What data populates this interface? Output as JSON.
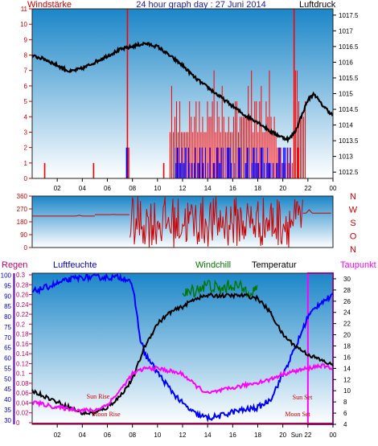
{
  "colors": {
    "background": "#ffffff",
    "panel_top": "#1b86c8",
    "panel_bottom": "#ffffff",
    "wind_bars": "#ff0000",
    "gust_bars": "#0000ff",
    "pressure_line": "#000000",
    "direction_line": "#cc0000",
    "humidity_line": "#0000ff",
    "temperature_line": "#000000",
    "windchill_line": "#007700",
    "dewpoint_line": "#ff00ff",
    "rain_color": "#cc0066",
    "title_color": "#1a1aa8",
    "axis_red": "#cc0000"
  },
  "chart_data": [
    {
      "type": "bar",
      "title": "24 hour graph day : 27 Juni 2014",
      "left_label": "Windstärke",
      "right_label": "Luftdruck",
      "x_ticks": [
        "02",
        "04",
        "06",
        "08",
        "10",
        "12",
        "14",
        "16",
        "18",
        "20",
        "22",
        "00"
      ],
      "left_ticks": [
        "0",
        "1",
        "2",
        "3",
        "4",
        "5",
        "6",
        "7",
        "8",
        "9",
        "10",
        "11"
      ],
      "right_ticks": [
        "1012.5",
        "1013",
        "1013.5",
        "1014",
        "1014.5",
        "1015",
        "1015.5",
        "1016",
        "1016.5",
        "1017",
        "1017.5"
      ],
      "ylim_left": [
        0,
        11
      ],
      "ylim_right": [
        1012.3,
        1017.7
      ],
      "wind_spikes": [
        {
          "hour": 1.0,
          "value": 1
        },
        {
          "hour": 4.9,
          "value": 1
        },
        {
          "hour": 7.6,
          "value": 11
        },
        {
          "hour": 7.7,
          "value": 2
        },
        {
          "hour": 10.5,
          "value": 1
        },
        {
          "hour": 20.9,
          "value": 11
        },
        {
          "hour": 21.2,
          "value": 2
        }
      ],
      "wind_band": {
        "from": 11.0,
        "to": 21.8,
        "typical": [
          3,
          4,
          5
        ]
      },
      "gust_band": {
        "from": 11.4,
        "to": 20.6,
        "max": 2
      },
      "pressure": {
        "hours": [
          0,
          1,
          2,
          3,
          4,
          5,
          6,
          7,
          8,
          9,
          10,
          11,
          12,
          13,
          14,
          15,
          16,
          17,
          18,
          19,
          20,
          20.5,
          21,
          21.5,
          22,
          22.5,
          23,
          24
        ],
        "values": [
          1016.2,
          1016.1,
          1015.9,
          1015.7,
          1015.8,
          1016.0,
          1016.2,
          1016.4,
          1016.5,
          1016.6,
          1016.5,
          1016.2,
          1015.9,
          1015.5,
          1015.2,
          1014.9,
          1014.6,
          1014.3,
          1014.1,
          1013.8,
          1013.6,
          1013.55,
          1013.8,
          1014.3,
          1014.8,
          1015.0,
          1014.7,
          1014.3
        ]
      }
    },
    {
      "type": "line",
      "left_ticks": [
        "0",
        "90",
        "180",
        "270",
        "360"
      ],
      "right_labels": [
        "N",
        "W",
        "S",
        "O",
        "N"
      ],
      "ylim": [
        0,
        360
      ],
      "direction": {
        "calm": [
          {
            "from": 0,
            "to": 5.0,
            "value": 220
          },
          {
            "from": 5.0,
            "to": 7.8,
            "value": 230
          },
          {
            "from": 21.6,
            "to": 24,
            "value": 240
          }
        ],
        "varying": {
          "from": 7.8,
          "to": 21.6,
          "min": 0,
          "max": 360
        }
      }
    },
    {
      "type": "line",
      "labels": {
        "rain": "Regen",
        "humidity": "Luftfeuchte",
        "windchill": "Windchill",
        "temperature": "Temperatur",
        "dewpoint": "Taupunkt"
      },
      "humidity_ticks": [
        "30",
        "35",
        "40",
        "45",
        "50",
        "55",
        "60",
        "65",
        "70",
        "75",
        "80",
        "85",
        "90",
        "95",
        "100"
      ],
      "rain_ticks": [
        "0",
        "0.02",
        "0.04",
        "0.06",
        "0.08",
        "0.1",
        "0.12",
        "0.14",
        "0.16",
        "0.18",
        "0.2",
        "0.22",
        "0.24",
        "0.26",
        "0.28",
        "0.3"
      ],
      "temp_ticks": [
        "4",
        "6",
        "8",
        "10",
        "12",
        "14",
        "16",
        "18",
        "20",
        "22",
        "24",
        "26",
        "28",
        "30"
      ],
      "x_ticks": [
        "02",
        "04",
        "06",
        "08",
        "10",
        "12",
        "14",
        "16",
        "18",
        "20",
        "22",
        "00"
      ],
      "ylim_humidity": [
        28,
        101
      ],
      "ylim_temp": [
        4,
        31
      ],
      "humidity": {
        "hours": [
          0,
          1,
          2,
          3,
          4,
          5,
          6,
          7,
          7.8,
          8.2,
          8.6,
          9,
          10,
          11,
          12,
          13,
          14,
          15,
          16,
          17,
          18,
          19,
          20,
          21,
          22,
          23,
          24
        ],
        "values": [
          92,
          94,
          96,
          98,
          99,
          99,
          99,
          99,
          98,
          88,
          70,
          62,
          53,
          45,
          38,
          33,
          31,
          32,
          34,
          35,
          36,
          40,
          52,
          65,
          80,
          87,
          90
        ]
      },
      "temperature": {
        "hours": [
          0,
          1,
          2,
          3,
          4,
          5,
          6,
          7,
          8,
          9,
          10,
          11,
          12,
          13,
          14,
          15,
          16,
          17,
          18,
          19,
          20,
          21,
          22,
          23,
          24
        ],
        "values": [
          10,
          9,
          8,
          7,
          6,
          6,
          7,
          9,
          12,
          18,
          22,
          24,
          25,
          26.5,
          27,
          27,
          27,
          27,
          26.5,
          24,
          20,
          18,
          16.5,
          15.5,
          14.5
        ]
      },
      "windchill": {
        "hours": [
          12.0,
          13.0,
          14.0,
          15.0,
          16.0,
          17.0,
          18.0
        ],
        "values": [
          27,
          28,
          29,
          28,
          29,
          28,
          28
        ]
      },
      "dewpoint": {
        "hours": [
          0,
          2,
          4,
          5,
          6,
          7,
          8,
          9,
          10,
          11,
          12,
          13,
          14,
          15,
          16,
          17,
          18,
          19,
          20,
          21,
          22,
          23,
          24
        ],
        "values": [
          8,
          7,
          6.5,
          6.5,
          7.5,
          10,
          13,
          14,
          14,
          13.5,
          13,
          11,
          9.5,
          10,
          10.5,
          11,
          11.5,
          12,
          13,
          13.5,
          14,
          14.5,
          14
        ]
      },
      "rain": {
        "hours": [],
        "values": []
      },
      "highlight": {
        "from": 22.0,
        "to": 24.0
      },
      "astro": [
        {
          "label": "Sun Rise",
          "hour": 5.1
        },
        {
          "label": "Moon Rise",
          "hour": 5.2
        },
        {
          "label": "Sun Set",
          "hour": 21.7
        },
        {
          "label": "Moon Set",
          "hour": 21.7
        }
      ],
      "x_overlap_labels": [
        "20",
        "Sun",
        "22"
      ]
    }
  ]
}
